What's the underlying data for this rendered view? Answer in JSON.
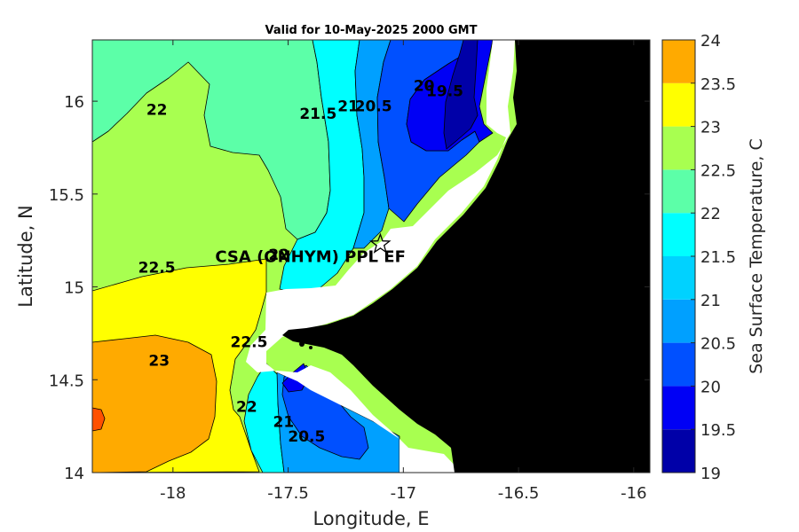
{
  "title": "Valid for 10-May-2025 2000 GMT",
  "xlabel": "Longitude, E",
  "ylabel": "Latitude, N",
  "colorbar_label": "Sea Surface Temperature, C",
  "station_label": "CSA (ONHYM) PPL EF",
  "chart_data": {
    "type": "heatmap",
    "title": "Valid for 10-May-2025 2000 GMT",
    "xlabel": "Longitude, E",
    "ylabel": "Latitude, N",
    "xlim": [
      -18.35,
      -15.93
    ],
    "ylim": [
      14.0,
      16.33
    ],
    "x_ticks": [
      "-18",
      "-17.5",
      "-17",
      "-16.5",
      "-16"
    ],
    "x_tick_values": [
      -18,
      -17.5,
      -17,
      -16.5,
      -16
    ],
    "y_ticks": [
      "14",
      "14.5",
      "15",
      "15.5",
      "16"
    ],
    "y_tick_values": [
      14,
      14.5,
      15,
      15.5,
      16
    ],
    "colorbar": {
      "label": "Sea Surface Temperature, C",
      "ticks": [
        "19",
        "19.5",
        "20",
        "20.5",
        "21",
        "21.5",
        "22",
        "22.5",
        "23",
        "23.5",
        "24"
      ],
      "levels": [
        19,
        19.5,
        20,
        20.5,
        21,
        21.5,
        22,
        22.5,
        23,
        23.5,
        24
      ],
      "colors": [
        "#0000a8",
        "#0000f5",
        "#0050ff",
        "#00a0ff",
        "#00d2ff",
        "#00ffff",
        "#5cffa8",
        "#a8ff50",
        "#ffff00",
        "#ffaa00",
        "#ff5000"
      ]
    },
    "land_color": "#000000",
    "no_data_color": "#ffffff",
    "contour_labels": [
      {
        "text": "22",
        "lon": -18.07,
        "lat": 15.95
      },
      {
        "text": "22.5",
        "lon": -18.07,
        "lat": 15.1
      },
      {
        "text": "23",
        "lon": -18.06,
        "lat": 14.6
      },
      {
        "text": "22",
        "lon": -17.54,
        "lat": 15.17
      },
      {
        "text": "22.5",
        "lon": -17.67,
        "lat": 14.7
      },
      {
        "text": "22",
        "lon": -17.68,
        "lat": 14.35
      },
      {
        "text": "21.5",
        "lon": -17.37,
        "lat": 15.93
      },
      {
        "text": "21",
        "lon": -17.24,
        "lat": 15.97
      },
      {
        "text": "20.5",
        "lon": -17.13,
        "lat": 15.97
      },
      {
        "text": "20",
        "lon": -16.91,
        "lat": 16.08
      },
      {
        "text": "19.5",
        "lon": -16.82,
        "lat": 16.05
      },
      {
        "text": "21",
        "lon": -17.52,
        "lat": 14.27
      },
      {
        "text": "20.5",
        "lon": -17.42,
        "lat": 14.19
      }
    ],
    "station": {
      "label": "CSA (ONHYM) PPL EF",
      "lon": -17.1,
      "lat": 15.23,
      "marker": "star"
    }
  }
}
